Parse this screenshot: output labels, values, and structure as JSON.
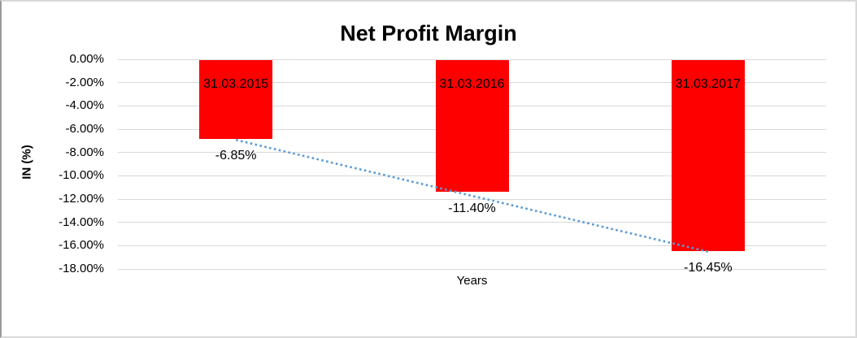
{
  "chart_data": {
    "type": "bar",
    "title": "Net Profit Margin",
    "xlabel": "Years",
    "ylabel": "IN (%)",
    "categories": [
      "31.03.2015",
      "31.03.2016",
      "31.03.2017"
    ],
    "values": [
      -6.85,
      -11.4,
      -16.45
    ],
    "data_labels": [
      "-6.85%",
      "-11.40%",
      "-16.45%"
    ],
    "ytick_labels": [
      "0.00%",
      "-2.00%",
      "-4.00%",
      "-6.00%",
      "-8.00%",
      "-10.00%",
      "-12.00%",
      "-14.00%",
      "-16.00%",
      "-18.00%"
    ],
    "ylim": [
      -18,
      0
    ],
    "ytick_step": 2,
    "grid": true,
    "legend": "none",
    "bar_color": "#FF0000",
    "gridline_color": "#D9D9D9",
    "text_color": "#000000",
    "trendline": {
      "type": "linear",
      "style": "dotted",
      "color": "#5B9BD5"
    }
  }
}
